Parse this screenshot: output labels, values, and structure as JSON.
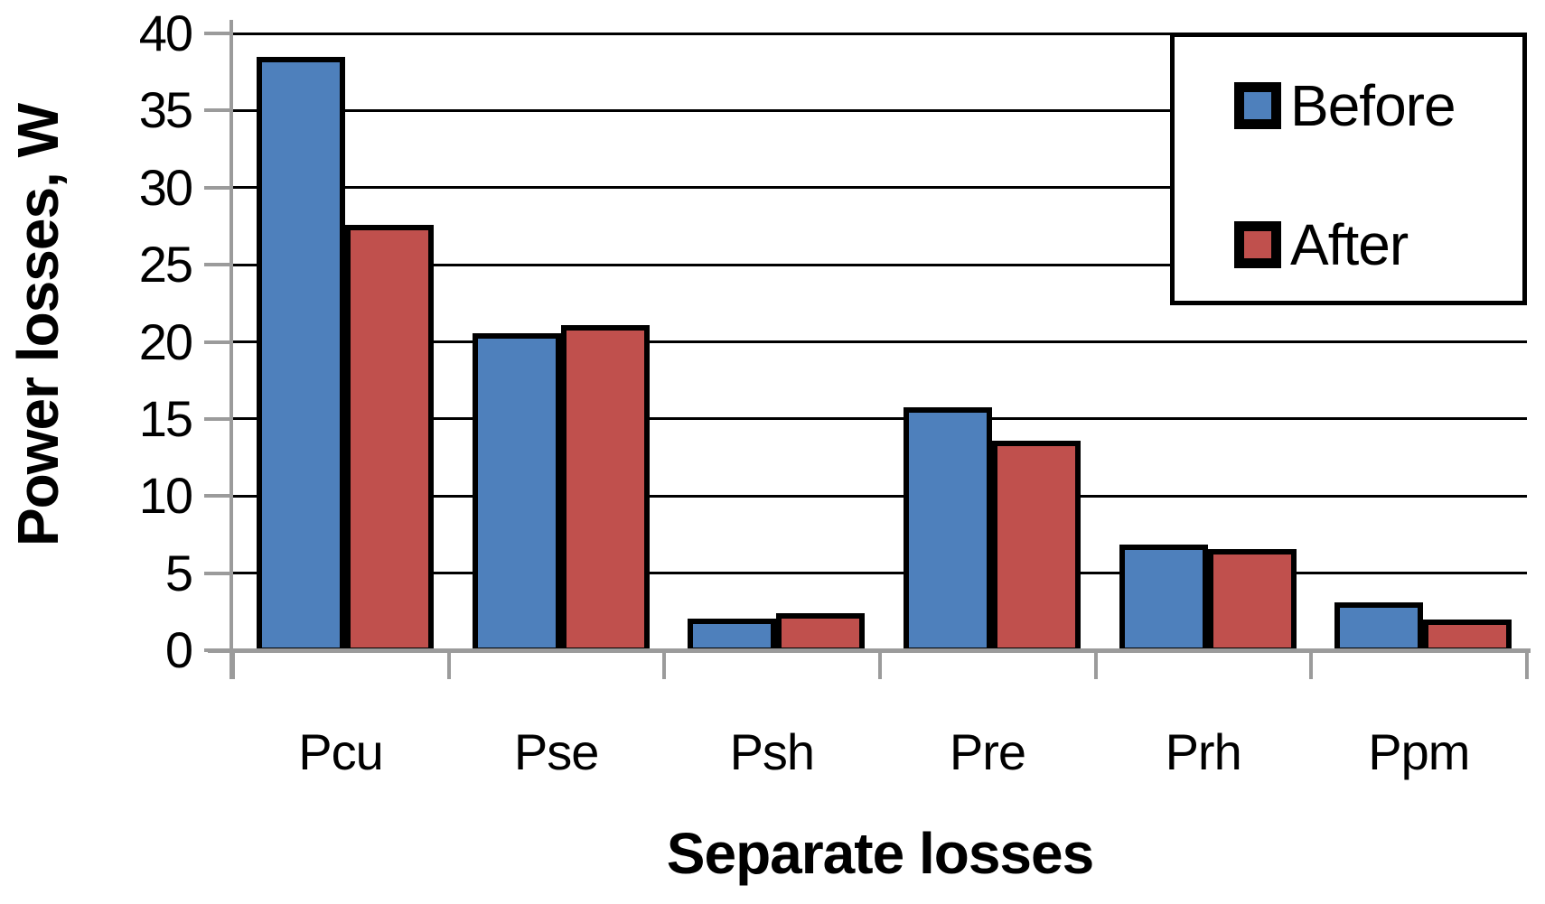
{
  "figure": {
    "background": "#ffffff",
    "text_color": "#000000",
    "axis_color": "#9b9b9b",
    "gridline_color": "#000000",
    "bar_border_color": "#000000"
  },
  "chart_data": {
    "type": "bar",
    "title": "",
    "xlabel": "Separate losses",
    "ylabel": "Power losses, W",
    "categories": [
      "Pcu",
      "Pse",
      "Psh",
      "Pre",
      "Prh",
      "Ppm"
    ],
    "series": [
      {
        "name": "Before",
        "color": "#4E80BC",
        "values": [
          38.3,
          20.4,
          1.9,
          15.6,
          6.7,
          2.9
        ]
      },
      {
        "name": "After",
        "color": "#C0504D",
        "values": [
          27.4,
          20.9,
          2.2,
          13.4,
          6.4,
          1.8
        ]
      }
    ],
    "ylim": [
      0,
      40
    ],
    "ytick_step": 5,
    "ytick_labels": [
      "40",
      "35",
      "30",
      "25",
      "20",
      "15",
      "10",
      "5",
      "0"
    ],
    "grid": true,
    "legend_position": "top-right"
  }
}
